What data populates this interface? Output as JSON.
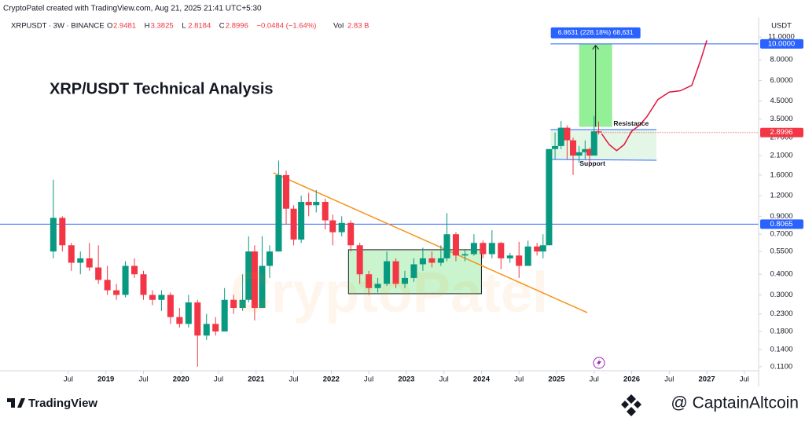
{
  "header": {
    "credit": "CryptoPatel created with TradingView.com, Aug 21, 2025 21:41 UTC+5:30",
    "symbol": "XRPUSDT · 3W · BINANCE",
    "ohlc": [
      {
        "key": "O",
        "value": "2.9481"
      },
      {
        "key": "H",
        "value": "3.3825"
      },
      {
        "key": "L",
        "value": "2.8184"
      },
      {
        "key": "C",
        "value": "2.8996"
      }
    ],
    "change": "−0.0484 (−1.64%)",
    "vol_key": "Vol",
    "vol_value": "2.83 B"
  },
  "footer": {
    "brand": "TradingView",
    "handle": "@ CaptainAltcoin"
  },
  "chart_data": {
    "type": "candlestick",
    "title": "XRP/USDT Technical Analysis",
    "watermark": "CryptoPatel",
    "currency": "USDT",
    "log_scale": true,
    "grid": false,
    "up_color": "#089981",
    "down_color": "#f23645",
    "xlim": [
      2017.59,
      2027.69
    ],
    "ylim": [
      0.104,
      11.9
    ],
    "xticks": [
      {
        "value": 2018.5,
        "label": "Jul"
      },
      2019,
      {
        "value": 2019.5,
        "label": "Jul"
      },
      2020,
      {
        "value": 2020.5,
        "label": "Jul"
      },
      2021,
      {
        "value": 2021.5,
        "label": "Jul"
      },
      2022,
      {
        "value": 2022.5,
        "label": "Jul"
      },
      2023,
      {
        "value": 2023.5,
        "label": "Jul"
      },
      2024,
      {
        "value": 2024.5,
        "label": "Jul"
      },
      2025,
      {
        "value": 2025.5,
        "label": "Jul"
      },
      2026,
      {
        "value": 2026.5,
        "label": "Jul"
      },
      2027,
      {
        "value": 2027.5,
        "label": "Jul"
      }
    ],
    "yticks": [
      {
        "value": 0.11,
        "label": "0.1100"
      },
      {
        "value": 0.14,
        "label": "0.1400"
      },
      {
        "value": 0.18,
        "label": "0.1800"
      },
      {
        "value": 0.23,
        "label": "0.2300"
      },
      {
        "value": 0.3,
        "label": "0.3000"
      },
      {
        "value": 0.4,
        "label": "0.4000"
      },
      {
        "value": 0.55,
        "label": "0.5500"
      },
      {
        "value": 0.7,
        "label": "0.7000"
      },
      {
        "value": 0.9,
        "label": "0.9000"
      },
      {
        "value": 1.2,
        "label": "1.2000"
      },
      {
        "value": 1.6,
        "label": "1.6000"
      },
      {
        "value": 2.1,
        "label": "2.1000"
      },
      {
        "value": 2.7,
        "label": "2.7000"
      },
      {
        "value": 3.5,
        "label": "3.5000"
      },
      {
        "value": 4.5,
        "label": "4.5000"
      },
      {
        "value": 6.0,
        "label": "6.0000"
      },
      {
        "value": 8.0,
        "label": "8.0000"
      },
      {
        "value": 11.0,
        "label": "11.0000"
      }
    ],
    "x": [
      2018.3,
      2018.42,
      2018.54,
      2018.66,
      2018.78,
      2018.9,
      2019.02,
      2019.14,
      2019.26,
      2019.38,
      2019.5,
      2019.62,
      2019.74,
      2019.86,
      2019.98,
      2020.1,
      2020.22,
      2020.34,
      2020.46,
      2020.58,
      2020.7,
      2020.82,
      2020.9,
      2020.98,
      2021.08,
      2021.18,
      2021.3,
      2021.4,
      2021.5,
      2021.6,
      2021.7,
      2021.8,
      2021.92,
      2022.02,
      2022.14,
      2022.26,
      2022.38,
      2022.5,
      2022.62,
      2022.74,
      2022.86,
      2022.98,
      2023.1,
      2023.22,
      2023.34,
      2023.46,
      2023.54,
      2023.66,
      2023.78,
      2023.9,
      2024.02,
      2024.14,
      2024.26,
      2024.38,
      2024.5,
      2024.62,
      2024.74,
      2024.82,
      2024.9,
      2024.98,
      2025.06,
      2025.14,
      2025.22,
      2025.3,
      2025.38,
      2025.44,
      2025.5,
      2025.56
    ],
    "open": [
      0.55,
      0.88,
      0.6,
      0.47,
      0.5,
      0.44,
      0.37,
      0.32,
      0.3,
      0.45,
      0.4,
      0.3,
      0.28,
      0.3,
      0.22,
      0.2,
      0.27,
      0.17,
      0.2,
      0.18,
      0.28,
      0.25,
      0.28,
      0.55,
      0.25,
      0.45,
      0.55,
      1.6,
      1.0,
      0.65,
      1.1,
      1.05,
      1.1,
      0.85,
      0.72,
      0.82,
      0.6,
      0.4,
      0.33,
      0.35,
      0.48,
      0.35,
      0.38,
      0.46,
      0.5,
      0.47,
      0.5,
      0.7,
      0.52,
      0.53,
      0.62,
      0.53,
      0.62,
      0.5,
      0.52,
      0.45,
      0.59,
      0.55,
      0.6,
      2.3,
      2.4,
      3.1,
      2.6,
      2.1,
      2.2,
      2.3,
      2.1,
      2.9481
    ],
    "high": [
      1.5,
      0.9,
      0.62,
      0.55,
      0.62,
      0.6,
      0.45,
      0.35,
      0.48,
      0.5,
      0.42,
      0.32,
      0.32,
      0.31,
      0.25,
      0.3,
      0.28,
      0.23,
      0.22,
      0.33,
      0.3,
      0.4,
      0.68,
      0.6,
      0.68,
      0.6,
      1.96,
      1.7,
      1.05,
      1.2,
      1.25,
      1.3,
      1.15,
      0.92,
      0.9,
      0.85,
      0.62,
      0.42,
      0.38,
      0.55,
      0.5,
      0.42,
      0.5,
      0.58,
      0.55,
      0.6,
      0.94,
      0.72,
      0.56,
      0.7,
      0.64,
      0.74,
      0.63,
      0.54,
      0.63,
      0.64,
      0.62,
      0.7,
      2.3,
      2.9,
      3.4,
      3.2,
      2.7,
      2.4,
      2.6,
      2.35,
      3.66,
      3.3825
    ],
    "low": [
      0.5,
      0.55,
      0.42,
      0.4,
      0.42,
      0.35,
      0.3,
      0.28,
      0.29,
      0.38,
      0.28,
      0.26,
      0.24,
      0.2,
      0.19,
      0.19,
      0.11,
      0.16,
      0.17,
      0.18,
      0.23,
      0.24,
      0.27,
      0.21,
      0.25,
      0.38,
      0.55,
      0.8,
      0.6,
      0.62,
      0.9,
      0.95,
      0.75,
      0.6,
      0.68,
      0.55,
      0.35,
      0.3,
      0.31,
      0.34,
      0.33,
      0.33,
      0.36,
      0.42,
      0.44,
      0.45,
      0.48,
      0.48,
      0.48,
      0.52,
      0.5,
      0.5,
      0.43,
      0.47,
      0.38,
      0.45,
      0.52,
      0.5,
      0.6,
      2.0,
      2.3,
      2.0,
      1.6,
      1.9,
      2.0,
      1.9,
      2.1,
      2.8184
    ],
    "close": [
      0.88,
      0.6,
      0.47,
      0.5,
      0.44,
      0.37,
      0.32,
      0.3,
      0.45,
      0.4,
      0.3,
      0.28,
      0.3,
      0.22,
      0.2,
      0.27,
      0.17,
      0.2,
      0.18,
      0.28,
      0.25,
      0.28,
      0.55,
      0.25,
      0.45,
      0.55,
      1.6,
      1.0,
      0.65,
      1.1,
      1.05,
      1.1,
      0.85,
      0.72,
      0.82,
      0.6,
      0.4,
      0.33,
      0.35,
      0.48,
      0.35,
      0.38,
      0.46,
      0.5,
      0.47,
      0.5,
      0.7,
      0.52,
      0.53,
      0.62,
      0.53,
      0.62,
      0.5,
      0.52,
      0.45,
      0.59,
      0.55,
      0.6,
      2.3,
      2.4,
      3.1,
      2.6,
      2.1,
      2.2,
      2.3,
      2.1,
      2.9481,
      2.8996
    ],
    "last_price": 2.8996,
    "levels": [
      {
        "value": 10.0,
        "label": "10.0000",
        "color": "#2962ff",
        "x_start": 2024.92
      },
      {
        "value": 0.8065,
        "label": "0.8065",
        "color": "#2962ff"
      }
    ],
    "trendline": {
      "color": "#f7931a",
      "x": [
        2021.23,
        2025.41
      ],
      "y": [
        1.65,
        0.234
      ]
    },
    "range_box": {
      "x": [
        2022.23,
        2024.0
      ],
      "y": [
        0.305,
        0.564
      ]
    },
    "resistance": {
      "label": "Resistance",
      "value": 3.02,
      "x": [
        2024.92,
        2026.33
      ]
    },
    "support": {
      "label": "Support",
      "value": 1.99,
      "x": [
        2024.92,
        2026.33
      ]
    },
    "measure": {
      "label": "6.8631 (228.18%) 68,631",
      "x": [
        2025.3,
        2025.74
      ],
      "y": [
        3.1369,
        10.0
      ]
    },
    "projection": {
      "color": "#e0123e",
      "x": [
        2025.6,
        2025.7,
        2025.8,
        2025.9,
        2026.0,
        2026.1,
        2026.2,
        2026.35,
        2026.5,
        2026.65,
        2026.8,
        2026.92,
        2027.0
      ],
      "y": [
        2.85,
        2.45,
        2.25,
        2.45,
        2.95,
        3.2,
        3.6,
        4.6,
        5.1,
        5.2,
        5.6,
        8.0,
        10.5
      ]
    }
  }
}
